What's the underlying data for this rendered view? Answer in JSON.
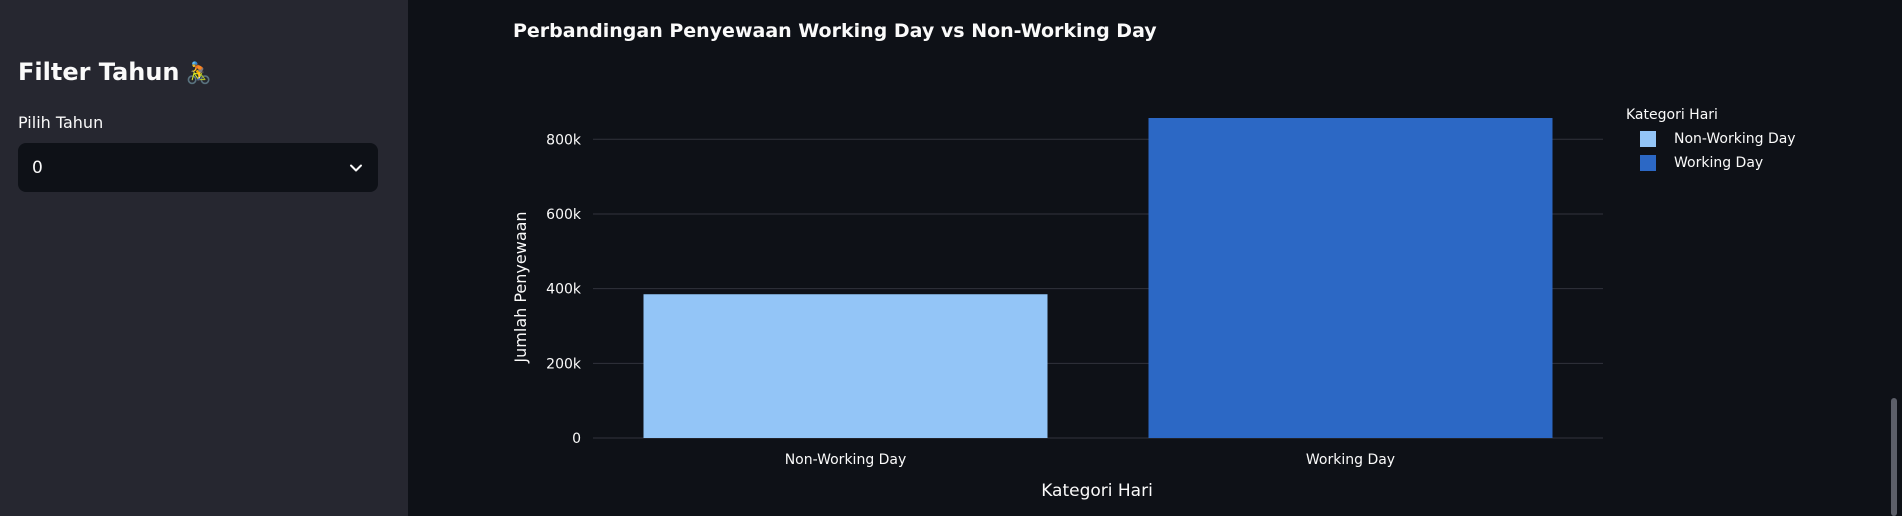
{
  "sidebar": {
    "title": "Filter Tahun",
    "title_icon": "bicyclist-emoji",
    "year_label": "Pilih Tahun",
    "year_value": "0"
  },
  "colors": {
    "background": "#0e1117",
    "sidebar": "#262730",
    "non_working": "#93c5f7",
    "working": "#2c68c5",
    "grid": "#31333c"
  },
  "chart_data": {
    "type": "bar",
    "title": "Perbandingan Penyewaan Working Day vs Non-Working Day",
    "xlabel": "Kategori Hari",
    "ylabel": "Jumlah Penyewaan",
    "categories": [
      "Non-Working Day",
      "Working Day"
    ],
    "values": [
      385000,
      857000
    ],
    "ylim": [
      0,
      857000
    ],
    "yticks": [
      0,
      200000,
      400000,
      600000,
      800000
    ],
    "ytick_labels": [
      "0",
      "200k",
      "400k",
      "600k",
      "800k"
    ],
    "legend": {
      "title": "Kategori Hari",
      "placement": "top-right",
      "entries": [
        "Non-Working Day",
        "Working Day"
      ]
    },
    "grid": true
  }
}
